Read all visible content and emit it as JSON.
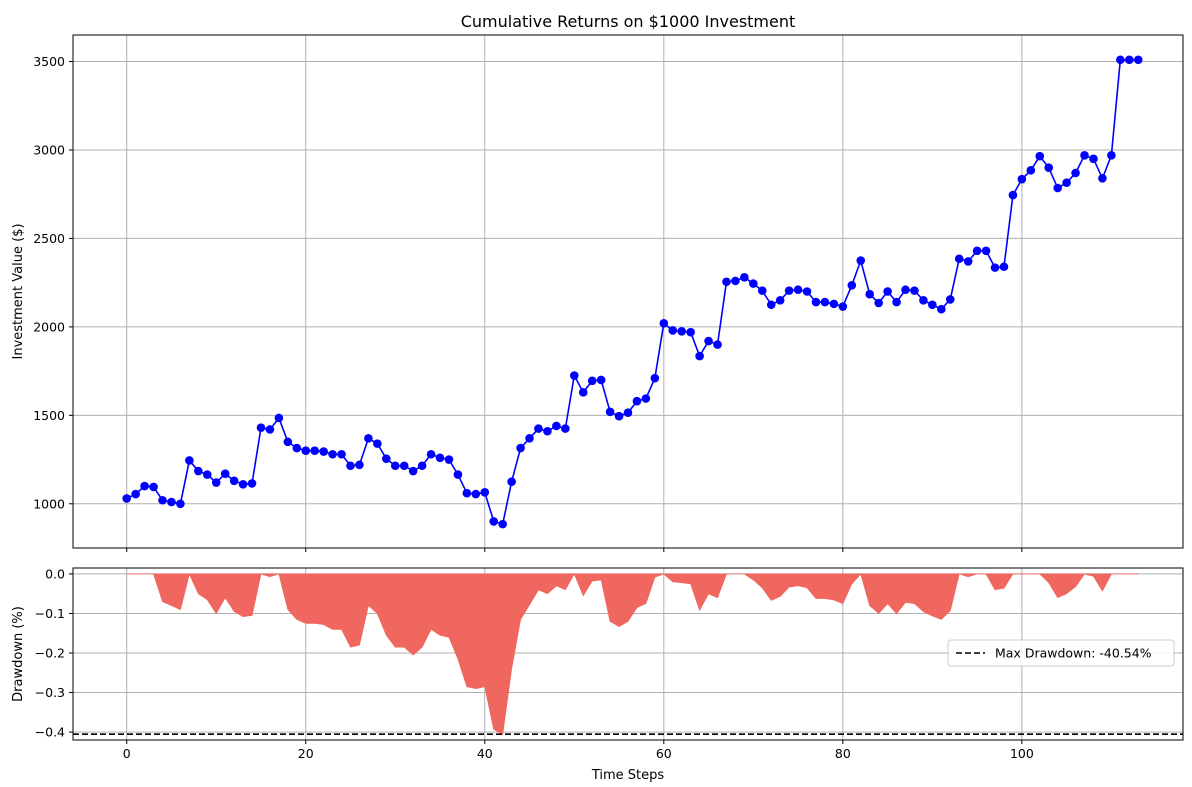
{
  "chart_data": [
    {
      "type": "line",
      "title": "Cumulative Returns on $1000 Investment",
      "xlabel": "",
      "ylabel": "Investment Value ($)",
      "xlim": [
        -6,
        118
      ],
      "ylim": [
        750,
        3650
      ],
      "xticks": [
        0,
        20,
        40,
        60,
        80,
        100
      ],
      "yticks": [
        1000,
        1500,
        2000,
        2500,
        3000,
        3500
      ],
      "grid": true,
      "colors": {
        "line": "#0000ff",
        "marker": "#0000ff"
      },
      "series": [
        {
          "x": [
            0,
            1,
            2,
            3,
            4,
            5,
            6,
            7,
            8,
            9,
            10,
            11,
            12,
            13,
            14,
            15,
            16,
            17,
            18,
            19,
            20,
            21,
            22,
            23,
            24,
            25,
            26,
            27,
            28,
            29,
            30,
            31,
            32,
            33,
            34,
            35,
            36,
            37,
            38,
            39,
            40,
            41,
            42,
            43,
            44,
            45,
            46,
            47,
            48,
            49,
            50,
            51,
            52,
            53,
            54,
            55,
            56,
            57,
            58,
            59,
            60,
            61,
            62,
            63,
            64,
            65,
            66,
            67,
            68,
            69,
            70,
            71,
            72,
            73,
            74,
            75,
            76,
            77,
            78,
            79,
            80,
            81,
            82,
            83,
            84,
            85,
            86,
            87,
            88,
            89,
            90,
            91,
            92,
            93,
            94,
            95,
            96,
            97,
            98,
            99,
            100,
            101,
            102,
            103,
            104,
            105,
            106,
            107,
            108,
            109,
            110,
            111,
            112,
            113
          ],
          "values": [
            1030,
            1055,
            1100,
            1095,
            1020,
            1010,
            1000,
            1245,
            1185,
            1165,
            1120,
            1170,
            1130,
            1110,
            1115,
            1430,
            1420,
            1485,
            1350,
            1315,
            1300,
            1300,
            1295,
            1280,
            1280,
            1215,
            1220,
            1370,
            1340,
            1255,
            1215,
            1215,
            1185,
            1215,
            1280,
            1260,
            1250,
            1165,
            1060,
            1055,
            1065,
            900,
            885,
            1125,
            1315,
            1370,
            1425,
            1410,
            1440,
            1425,
            1725,
            1630,
            1695,
            1700,
            1520,
            1495,
            1515,
            1580,
            1595,
            1710,
            2020,
            1980,
            1975,
            1970,
            1835,
            1920,
            1900,
            2255,
            2260,
            2280,
            2245,
            2205,
            2125,
            2150,
            2205,
            2210,
            2200,
            2140,
            2140,
            2130,
            2115,
            2235,
            2375,
            2185,
            2135,
            2200,
            2140,
            2210,
            2205,
            2150,
            2125,
            2100,
            2155,
            2385,
            2370,
            2430,
            2430,
            2335,
            2340,
            2745,
            2835,
            2885,
            2965,
            2900,
            2785,
            2815,
            2870,
            2970,
            2950,
            2840,
            2970,
            3510,
            3510,
            3510
          ]
        }
      ]
    },
    {
      "type": "area",
      "title": "",
      "xlabel": "Time Steps",
      "ylabel": "Drawdown (%)",
      "xlim": [
        -6,
        118
      ],
      "ylim": [
        -0.42,
        0.015
      ],
      "xticks": [
        0,
        20,
        40,
        60,
        80,
        100
      ],
      "yticks": [
        0.0,
        -0.1,
        -0.2,
        -0.3,
        -0.4
      ],
      "ytick_labels": [
        "0.0",
        "−0.1",
        "−0.2",
        "−0.3",
        "−0.4"
      ],
      "grid": true,
      "legend": {
        "placement": "right",
        "entries": [
          "Max Drawdown: -40.54%"
        ]
      },
      "max_drawdown": -0.4054,
      "colors": {
        "fill": "#f0675f",
        "hline": "#000000"
      },
      "series": [
        {
          "x": [
            0,
            1,
            2,
            3,
            4,
            5,
            6,
            7,
            8,
            9,
            10,
            11,
            12,
            13,
            14,
            15,
            16,
            17,
            18,
            19,
            20,
            21,
            22,
            23,
            24,
            25,
            26,
            27,
            28,
            29,
            30,
            31,
            32,
            33,
            34,
            35,
            36,
            37,
            38,
            39,
            40,
            41,
            42,
            43,
            44,
            45,
            46,
            47,
            48,
            49,
            50,
            51,
            52,
            53,
            54,
            55,
            56,
            57,
            58,
            59,
            60,
            61,
            62,
            63,
            64,
            65,
            66,
            67,
            68,
            69,
            70,
            71,
            72,
            73,
            74,
            75,
            76,
            77,
            78,
            79,
            80,
            81,
            82,
            83,
            84,
            85,
            86,
            87,
            88,
            89,
            90,
            91,
            92,
            93,
            94,
            95,
            96,
            97,
            98,
            99,
            100,
            101,
            102,
            103,
            104,
            105,
            106,
            107,
            108,
            109,
            110,
            111,
            112,
            113
          ],
          "values": [
            0,
            0,
            0,
            0,
            -0.07,
            -0.08,
            -0.09,
            0,
            -0.05,
            -0.065,
            -0.1,
            -0.06,
            -0.095,
            -0.108,
            -0.105,
            0,
            -0.007,
            0,
            -0.09,
            -0.115,
            -0.125,
            -0.125,
            -0.128,
            -0.14,
            -0.14,
            -0.185,
            -0.18,
            -0.08,
            -0.1,
            -0.155,
            -0.185,
            -0.185,
            -0.205,
            -0.185,
            -0.14,
            -0.155,
            -0.16,
            -0.215,
            -0.285,
            -0.29,
            -0.285,
            -0.393,
            -0.4054,
            -0.24,
            -0.115,
            -0.078,
            -0.04,
            -0.05,
            -0.03,
            -0.04,
            0,
            -0.055,
            -0.018,
            -0.015,
            -0.12,
            -0.133,
            -0.12,
            -0.085,
            -0.075,
            -0.008,
            0,
            -0.02,
            -0.022,
            -0.025,
            -0.092,
            -0.05,
            -0.06,
            0,
            0,
            0,
            -0.015,
            -0.035,
            -0.067,
            -0.057,
            -0.033,
            -0.03,
            -0.035,
            -0.062,
            -0.062,
            -0.066,
            -0.075,
            -0.025,
            0,
            -0.08,
            -0.1,
            -0.075,
            -0.1,
            -0.072,
            -0.075,
            -0.095,
            -0.106,
            -0.115,
            -0.093,
            0,
            -0.007,
            0,
            0,
            -0.04,
            -0.036,
            0,
            0,
            0,
            0,
            -0.022,
            -0.06,
            -0.05,
            -0.032,
            0,
            -0.006,
            -0.043,
            0,
            0,
            0,
            0
          ]
        }
      ]
    }
  ]
}
